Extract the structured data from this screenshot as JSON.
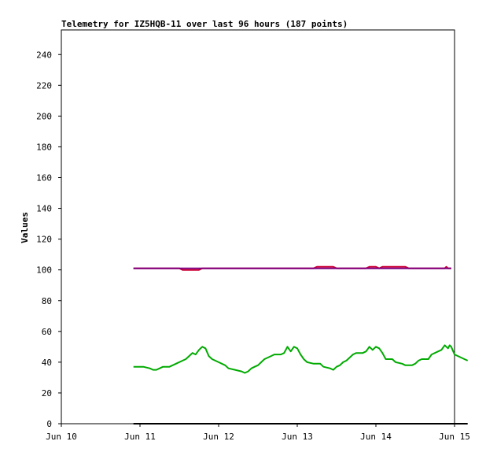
{
  "chart_data": {
    "type": "line",
    "title": "Telemetry for IZ5HQB-11 over last 96 hours (187 points)",
    "xlabel": "",
    "ylabel": "Values",
    "x_ticks": [
      "Jun 10",
      "Jun 11",
      "Jun 12",
      "Jun 13",
      "Jun 14",
      "Jun 15"
    ],
    "y_ticks": [
      0,
      20,
      40,
      60,
      80,
      100,
      120,
      140,
      160,
      180,
      200,
      220,
      240
    ],
    "xlim": [
      "2000-06-10T00:00",
      "2000-06-15T00:00"
    ],
    "ylim": [
      0,
      256
    ],
    "grid": false,
    "legend": "none",
    "series": [
      {
        "color": "#cc0033",
        "points": [
          [
            "06-10 22:00",
            101
          ],
          [
            "06-11 12:00",
            101
          ],
          [
            "06-11 13:00",
            100
          ],
          [
            "06-11 18:00",
            100
          ],
          [
            "06-11 19:00",
            101
          ],
          [
            "06-13 05:00",
            101
          ],
          [
            "06-13 06:00",
            102
          ],
          [
            "06-13 11:00",
            102
          ],
          [
            "06-13 12:00",
            101
          ],
          [
            "06-13 21:00",
            101
          ],
          [
            "06-13 22:00",
            102
          ],
          [
            "06-14 00:00",
            102
          ],
          [
            "06-14 01:00",
            101
          ],
          [
            "06-14 02:00",
            102
          ],
          [
            "06-14 09:00",
            102
          ],
          [
            "06-14 10:00",
            101
          ],
          [
            "06-14 21:00",
            101
          ],
          [
            "06-14 21:30",
            102
          ],
          [
            "06-14 22:00",
            101
          ],
          [
            "06-14 23:00",
            101
          ]
        ]
      },
      {
        "color": "#800080",
        "points": [
          [
            "06-10 22:00",
            101
          ],
          [
            "06-14 23:00",
            101
          ]
        ]
      },
      {
        "color": "#00aa00",
        "points": [
          [
            "06-10 22:00",
            37
          ],
          [
            "06-11 01:00",
            37
          ],
          [
            "06-11 03:00",
            36
          ],
          [
            "06-11 04:00",
            35
          ],
          [
            "06-11 05:00",
            35
          ],
          [
            "06-11 06:00",
            36
          ],
          [
            "06-11 07:00",
            37
          ],
          [
            "06-11 09:00",
            37
          ],
          [
            "06-11 11:00",
            39
          ],
          [
            "06-11 13:00",
            41
          ],
          [
            "06-11 14:00",
            42
          ],
          [
            "06-11 15:00",
            44
          ],
          [
            "06-11 16:00",
            46
          ],
          [
            "06-11 17:00",
            45
          ],
          [
            "06-11 18:00",
            48
          ],
          [
            "06-11 19:00",
            50
          ],
          [
            "06-11 20:00",
            49
          ],
          [
            "06-11 21:00",
            44
          ],
          [
            "06-11 22:00",
            42
          ],
          [
            "06-12 00:00",
            40
          ],
          [
            "06-12 02:00",
            38
          ],
          [
            "06-12 03:00",
            36
          ],
          [
            "06-12 05:00",
            35
          ],
          [
            "06-12 07:00",
            34
          ],
          [
            "06-12 08:00",
            33
          ],
          [
            "06-12 09:00",
            34
          ],
          [
            "06-12 10:00",
            36
          ],
          [
            "06-12 11:00",
            37
          ],
          [
            "06-12 12:00",
            38
          ],
          [
            "06-12 13:00",
            40
          ],
          [
            "06-12 14:00",
            42
          ],
          [
            "06-12 16:00",
            44
          ],
          [
            "06-12 17:00",
            45
          ],
          [
            "06-12 19:00",
            45
          ],
          [
            "06-12 20:00",
            46
          ],
          [
            "06-12 21:00",
            50
          ],
          [
            "06-12 22:00",
            47
          ],
          [
            "06-12 23:00",
            50
          ],
          [
            "06-13 00:00",
            49
          ],
          [
            "06-13 01:00",
            45
          ],
          [
            "06-13 02:00",
            42
          ],
          [
            "06-13 03:00",
            40
          ],
          [
            "06-13 05:00",
            39
          ],
          [
            "06-13 07:00",
            39
          ],
          [
            "06-13 08:00",
            37
          ],
          [
            "06-13 10:00",
            36
          ],
          [
            "06-13 11:00",
            35
          ],
          [
            "06-13 12:00",
            37
          ],
          [
            "06-13 13:00",
            38
          ],
          [
            "06-13 14:00",
            40
          ],
          [
            "06-13 15:00",
            41
          ],
          [
            "06-13 16:00",
            43
          ],
          [
            "06-13 17:00",
            45
          ],
          [
            "06-13 18:00",
            46
          ],
          [
            "06-13 20:00",
            46
          ],
          [
            "06-13 21:00",
            47
          ],
          [
            "06-13 22:00",
            50
          ],
          [
            "06-13 23:00",
            48
          ],
          [
            "06-14 00:00",
            50
          ],
          [
            "06-14 01:00",
            49
          ],
          [
            "06-14 02:00",
            46
          ],
          [
            "06-14 03:00",
            42
          ],
          [
            "06-14 05:00",
            42
          ],
          [
            "06-14 06:00",
            40
          ],
          [
            "06-14 08:00",
            39
          ],
          [
            "06-14 09:00",
            38
          ],
          [
            "06-14 11:00",
            38
          ],
          [
            "06-14 12:00",
            39
          ],
          [
            "06-14 13:00",
            41
          ],
          [
            "06-14 14:00",
            42
          ],
          [
            "06-14 16:00",
            42
          ],
          [
            "06-14 17:00",
            45
          ],
          [
            "06-14 19:00",
            47
          ],
          [
            "06-14 20:00",
            48
          ],
          [
            "06-14 21:00",
            51
          ],
          [
            "06-14 22:00",
            49
          ],
          [
            "06-14 22:30",
            51
          ],
          [
            "06-14 23:00",
            50
          ],
          [
            "06-15 00:00",
            45
          ],
          [
            "06-15 02:00",
            43
          ],
          [
            "06-15 03:00",
            42
          ],
          [
            "06-15 04:00",
            41
          ]
        ]
      },
      {
        "color": "#000000",
        "points": [
          [
            "06-10 22:00",
            0
          ],
          [
            "06-15 04:00",
            0
          ]
        ]
      }
    ]
  }
}
